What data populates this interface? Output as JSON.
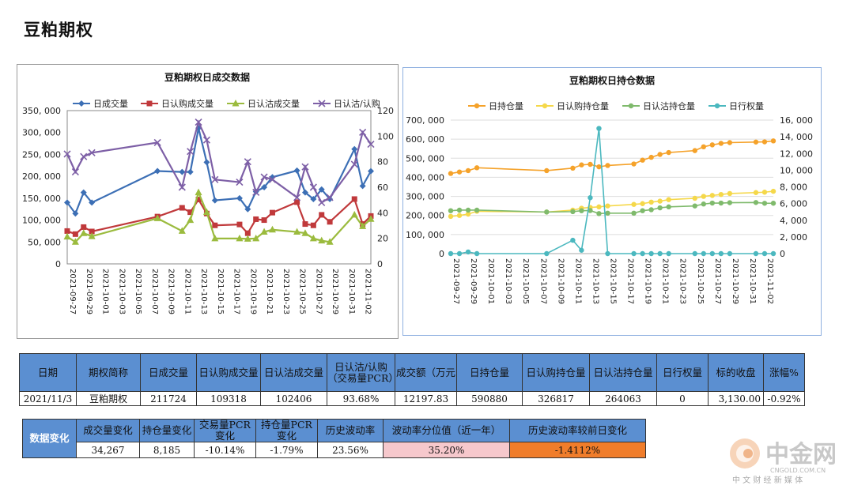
{
  "page_title": "豆粕期权",
  "colors": {
    "blue": "#3c6fb5",
    "red": "#c0393b",
    "green": "#9bbb3e",
    "purple": "#7d5fa6",
    "orange": "#f5a22a",
    "yellow": "#f5d84a",
    "lgreen": "#7fba6c",
    "teal": "#4bb8bf",
    "header": "#5b8fd1"
  },
  "chart_data": [
    {
      "type": "line",
      "title": "豆粕期权日成交数据",
      "categories": [
        "2021-09-27",
        "2021-09-28",
        "2021-09-29",
        "2021-09-30",
        "2021-10-08",
        "2021-10-11",
        "2021-10-12",
        "2021-10-13",
        "2021-10-14",
        "2021-10-15",
        "2021-10-18",
        "2021-10-19",
        "2021-10-20",
        "2021-10-21",
        "2021-10-22",
        "2021-10-25",
        "2021-10-26",
        "2021-10-27",
        "2021-10-28",
        "2021-10-29",
        "2021-11-01",
        "2021-11-02",
        "2021-11-03"
      ],
      "xtick_labels": [
        "2021-09-27",
        "2021-09-29",
        "2021-10-01",
        "2021-10-03",
        "2021-10-05",
        "2021-10-07",
        "2021-10-09",
        "2021-10-11",
        "2021-10-13",
        "2021-10-15",
        "2021-10-17",
        "2021-10-19",
        "2021-10-21",
        "2021-10-23",
        "2021-10-25",
        "2021-10-27",
        "2021-10-29",
        "2021-10-31",
        "2021-11-02"
      ],
      "xaxis_start": "2021-09-27",
      "xaxis_end": "2021-11-03",
      "y_left": {
        "min": 0,
        "max": 350000,
        "ticks": [
          "0",
          "50, 000",
          "100, 000",
          "150, 000",
          "200, 000",
          "250, 000",
          "300, 000",
          "350, 000"
        ]
      },
      "y_right": {
        "min": 0,
        "max": 120,
        "ticks": [
          "0",
          "20",
          "40",
          "60",
          "80",
          "100",
          "120"
        ]
      },
      "series": [
        {
          "name": "日成交量",
          "color": "#3c6fb5",
          "marker": "diamond",
          "axis": "left",
          "values": [
            140000,
            115000,
            163000,
            140000,
            212000,
            210000,
            210000,
            310000,
            232000,
            145000,
            150000,
            125000,
            165000,
            175000,
            198000,
            213000,
            163000,
            148000,
            170000,
            148000,
            262000,
            178000,
            211724
          ]
        },
        {
          "name": "日认购成交量",
          "color": "#c0393b",
          "marker": "square",
          "axis": "left",
          "values": [
            75000,
            68000,
            84000,
            74000,
            108000,
            128000,
            118000,
            147000,
            115000,
            88000,
            90000,
            70000,
            102000,
            100000,
            117000,
            141000,
            91000,
            88000,
            112000,
            96000,
            148000,
            91000,
            109318
          ]
        },
        {
          "name": "日认沽成交量",
          "color": "#9bbb3e",
          "marker": "triangle",
          "axis": "left",
          "values": [
            62000,
            50000,
            70000,
            63000,
            104000,
            75000,
            100000,
            163000,
            118000,
            58000,
            58000,
            57000,
            58000,
            73000,
            78000,
            73000,
            70000,
            58000,
            53000,
            50000,
            112000,
            86000,
            102406
          ]
        },
        {
          "name": "日认沽/认购",
          "color": "#7d5fa6",
          "marker": "x",
          "axis": "right",
          "values": [
            86,
            72,
            84,
            87,
            95,
            60,
            88,
            111,
            97,
            66,
            64,
            80,
            56,
            68,
            66,
            52,
            76,
            60,
            48,
            52,
            78,
            103,
            93.68
          ]
        }
      ],
      "legend_position": "top"
    },
    {
      "type": "line",
      "title": "豆粕期权日持仓数据",
      "categories": [
        "2021-09-27",
        "2021-09-28",
        "2021-09-29",
        "2021-09-30",
        "2021-10-08",
        "2021-10-11",
        "2021-10-12",
        "2021-10-13",
        "2021-10-14",
        "2021-10-15",
        "2021-10-18",
        "2021-10-19",
        "2021-10-20",
        "2021-10-21",
        "2021-10-22",
        "2021-10-25",
        "2021-10-26",
        "2021-10-27",
        "2021-10-28",
        "2021-10-29",
        "2021-11-01",
        "2021-11-02",
        "2021-11-03"
      ],
      "xtick_labels": [
        "2021-09-27",
        "2021-09-29",
        "2021-10-01",
        "2021-10-03",
        "2021-10-05",
        "2021-10-07",
        "2021-10-09",
        "2021-10-11",
        "2021-10-13",
        "2021-10-15",
        "2021-10-17",
        "2021-10-19",
        "2021-10-21",
        "2021-10-23",
        "2021-10-25",
        "2021-10-27",
        "2021-10-29",
        "2021-10-31",
        "2021-11-02"
      ],
      "xaxis_start": "2021-09-27",
      "xaxis_end": "2021-11-03",
      "y_left": {
        "min": 0,
        "max": 700000,
        "ticks": [
          "0",
          "100, 000",
          "200, 000",
          "300, 000",
          "400, 000",
          "500, 000",
          "600, 000",
          "700, 000"
        ]
      },
      "y_right": {
        "min": 0,
        "max": 16000,
        "ticks": [
          "0",
          "2, 000",
          "4, 000",
          "6, 000",
          "8, 000",
          "10, 000",
          "12, 000",
          "14, 000",
          "16, 000"
        ]
      },
      "series": [
        {
          "name": "日持仓量",
          "color": "#f5a22a",
          "axis": "left",
          "values": [
            420000,
            428000,
            435000,
            450000,
            435000,
            448000,
            465000,
            468000,
            455000,
            462000,
            470000,
            490000,
            505000,
            520000,
            530000,
            540000,
            560000,
            570000,
            578000,
            582000,
            585000,
            586000,
            590880
          ]
        },
        {
          "name": "日认购持仓量",
          "color": "#f5d84a",
          "axis": "left",
          "values": [
            195000,
            200000,
            207000,
            222000,
            218000,
            228000,
            238000,
            242000,
            245000,
            250000,
            258000,
            262000,
            270000,
            275000,
            283000,
            290000,
            300000,
            305000,
            310000,
            315000,
            320000,
            322000,
            326817
          ]
        },
        {
          "name": "日认沽持仓量",
          "color": "#7fba6c",
          "axis": "left",
          "values": [
            225000,
            228000,
            228000,
            228000,
            218000,
            220000,
            225000,
            226000,
            210000,
            212000,
            212000,
            225000,
            230000,
            240000,
            245000,
            250000,
            260000,
            265000,
            265000,
            267000,
            268000,
            264000,
            264063
          ]
        },
        {
          "name": "日行权量",
          "color": "#4bb8bf",
          "axis": "right",
          "values": [
            0,
            0,
            200,
            0,
            0,
            1600,
            400,
            6700,
            15000,
            0,
            0,
            0,
            0,
            0,
            0,
            0,
            0,
            0,
            0,
            0,
            0,
            0,
            0
          ]
        }
      ],
      "legend_position": "top"
    }
  ],
  "table1": {
    "headers": [
      "日期",
      "期权简称",
      "日成交量",
      "日认购成交量",
      "日认沽成交量",
      "日认沽/认购（交易量PCR）",
      "成交额（万元",
      "日持仓量",
      "日认购持仓量",
      "日认沽持仓量",
      "日行权量",
      "标的收盘",
      "涨幅%"
    ],
    "values": [
      "2021/11/3",
      "豆粕期权",
      "211724",
      "109318",
      "102406",
      "93.68%",
      "12197.83",
      "590880",
      "326817",
      "264063",
      "0",
      "3,130.00",
      "-0.92%"
    ]
  },
  "table2": {
    "row_label": "数据变化",
    "headers": [
      "成交量变化",
      "持仓量变化",
      "交易量PCR变化",
      "持仓量PCR变化",
      "历史波动率",
      "波动率分位值（近一年）",
      "历史波动率较前日变化"
    ],
    "values": [
      "34,267",
      "8,185",
      "-10.14%",
      "-1.79%",
      "23.56%",
      "35.20%",
      "-1.4112%"
    ]
  },
  "watermark": {
    "name": "中金网",
    "site": "CNGOLD.COM.CN",
    "tagline": "中 文 财 经 新 媒 体"
  }
}
